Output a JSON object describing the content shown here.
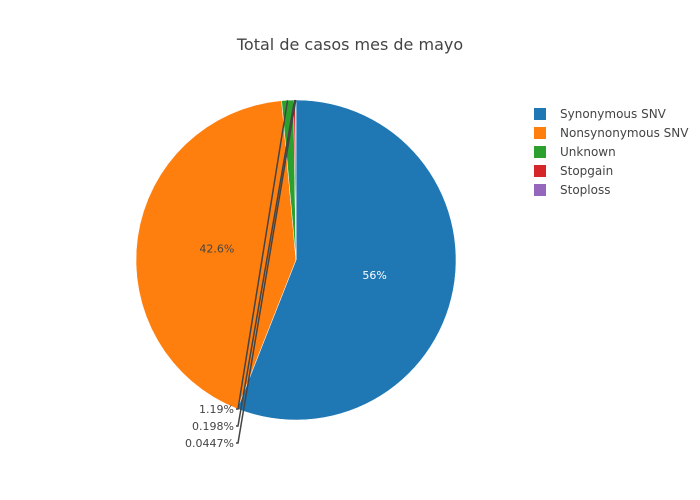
{
  "chart_data": {
    "type": "pie",
    "title": "Total de casos mes de mayo",
    "categories": [
      "Synonymous SNV",
      "Nonsynonymous SNV",
      "Unknown",
      "Stopgain",
      "Stoploss"
    ],
    "values": [
      56,
      42.6,
      1.19,
      0.198,
      0.0447
    ],
    "labels": [
      "56%",
      "42.6%",
      "1.19%",
      "0.198%",
      "0.0447%"
    ],
    "colors": [
      "#1f77b4",
      "#ff7f0e",
      "#2ca02c",
      "#d62728",
      "#9467bd"
    ],
    "legend_position": "top-right",
    "direction": "clockwise",
    "start": "top"
  }
}
